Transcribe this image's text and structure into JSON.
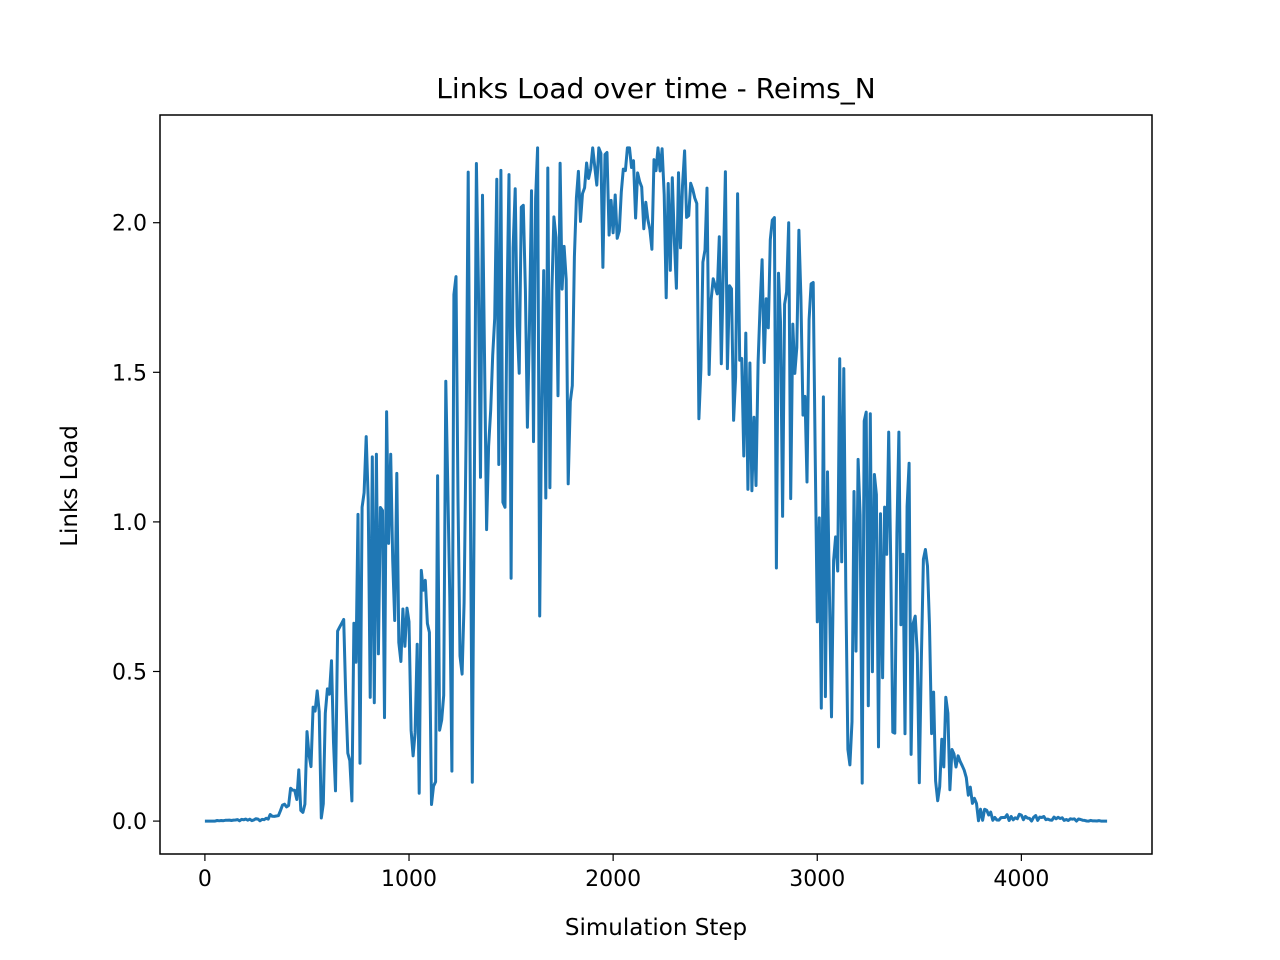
{
  "chart_data": {
    "type": "line",
    "title": "Links Load over time - Reims_N",
    "xlabel": "Simulation Step",
    "ylabel": "Links Load",
    "xlim": [
      -220,
      4640
    ],
    "ylim": [
      -0.11,
      2.36
    ],
    "xticks": [
      0,
      1000,
      2000,
      3000,
      4000
    ],
    "xtick_labels": [
      "0",
      "1000",
      "2000",
      "3000",
      "4000"
    ],
    "yticks": [
      0.0,
      0.5,
      1.0,
      1.5,
      2.0
    ],
    "ytick_labels": [
      "0.0",
      "0.5",
      "1.0",
      "1.5",
      "2.0"
    ],
    "grid": false,
    "legend": "none",
    "series": [
      {
        "color": "#1f77b4",
        "x_start": 0,
        "x_end": 4420,
        "x_step": 10,
        "envelope_x": [
          0,
          300,
          400,
          500,
          600,
          700,
          800,
          900,
          1000,
          1100,
          1200,
          1300,
          1400,
          1500,
          1600,
          1700,
          1800,
          1900,
          2000,
          2100,
          2200,
          2300,
          2400,
          2500,
          2600,
          2700,
          2800,
          2900,
          3000,
          3100,
          3200,
          3300,
          3400,
          3500,
          3600,
          3700,
          3800,
          3850,
          4420
        ],
        "envelope_high": [
          0,
          0.01,
          0.07,
          0.3,
          0.57,
          0.7,
          1.35,
          1.37,
          0.85,
          0.83,
          1.64,
          2.24,
          2.1,
          2.25,
          2.25,
          2.25,
          2.25,
          2.25,
          2.25,
          2.25,
          2.25,
          2.25,
          2.23,
          2.23,
          2.23,
          2.23,
          2.0,
          2.0,
          1.75,
          1.55,
          1.5,
          1.3,
          1.3,
          1.1,
          0.7,
          0.2,
          0.05,
          0.03,
          0
        ],
        "envelope_low": [
          0,
          0,
          0,
          0,
          0,
          0,
          0,
          0,
          0,
          0,
          0,
          0.1,
          0.2,
          0.3,
          0.6,
          0.8,
          1.1,
          1.7,
          1.9,
          2.0,
          1.9,
          1.6,
          1.3,
          1.2,
          1.0,
          0.9,
          0.65,
          0.5,
          0.3,
          0.15,
          0.1,
          0.05,
          0.02,
          0.02,
          0,
          0,
          0,
          0,
          0
        ]
      }
    ]
  }
}
